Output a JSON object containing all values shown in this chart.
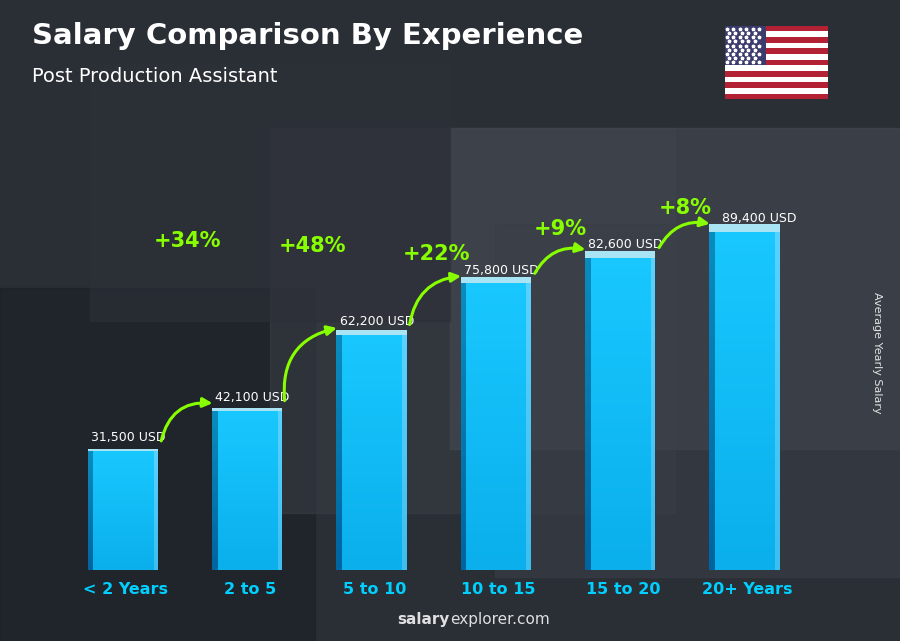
{
  "title": "Salary Comparison By Experience",
  "subtitle": "Post Production Assistant",
  "categories": [
    "< 2 Years",
    "2 to 5",
    "5 to 10",
    "10 to 15",
    "15 to 20",
    "20+ Years"
  ],
  "values": [
    31500,
    42100,
    62200,
    75800,
    82600,
    89400
  ],
  "labels": [
    "31,500 USD",
    "42,100 USD",
    "62,200 USD",
    "75,800 USD",
    "82,600 USD",
    "89,400 USD"
  ],
  "pct_changes": [
    "+34%",
    "+48%",
    "+22%",
    "+9%",
    "+8%"
  ],
  "bar_color_main": "#00bfff",
  "bar_color_dark": "#0077aa",
  "bar_color_highlight": "#80dfff",
  "bar_color_top": "#aaeeff",
  "background_color": "#2a3040",
  "text_color": "#ffffff",
  "pct_color": "#88ff00",
  "ylabel": "Average Yearly Salary",
  "watermark_bold": "salary",
  "watermark_normal": "explorer.com",
  "ylim": [
    0,
    110000
  ],
  "arrow_color": "#88ff00"
}
